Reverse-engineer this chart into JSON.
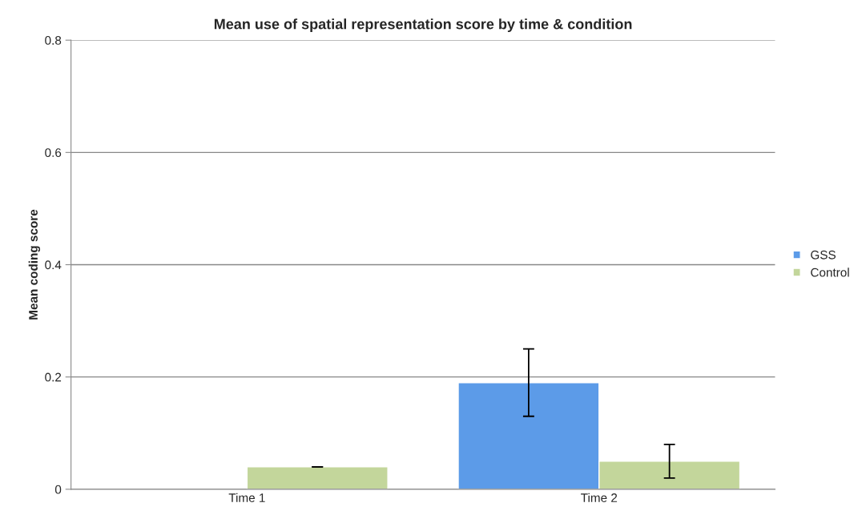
{
  "chart_data": {
    "type": "bar",
    "title": "Mean use of spatial representation score by time & condition",
    "ylabel": "Mean coding score",
    "categories": [
      "Time 1",
      "Time 2"
    ],
    "series": [
      {
        "name": "GSS",
        "color": "#5c9be8",
        "values": [
          null,
          0.19
        ],
        "errors": [
          null,
          0.06
        ]
      },
      {
        "name": "Control",
        "color": "#c3d69b",
        "values": [
          0.04,
          0.05
        ],
        "errors": [
          0,
          0.03
        ]
      }
    ],
    "ylim": [
      0,
      0.8
    ],
    "yticks": [
      0,
      0.2,
      0.4,
      0.6,
      0.8
    ],
    "grid": "y",
    "legend": "right"
  }
}
